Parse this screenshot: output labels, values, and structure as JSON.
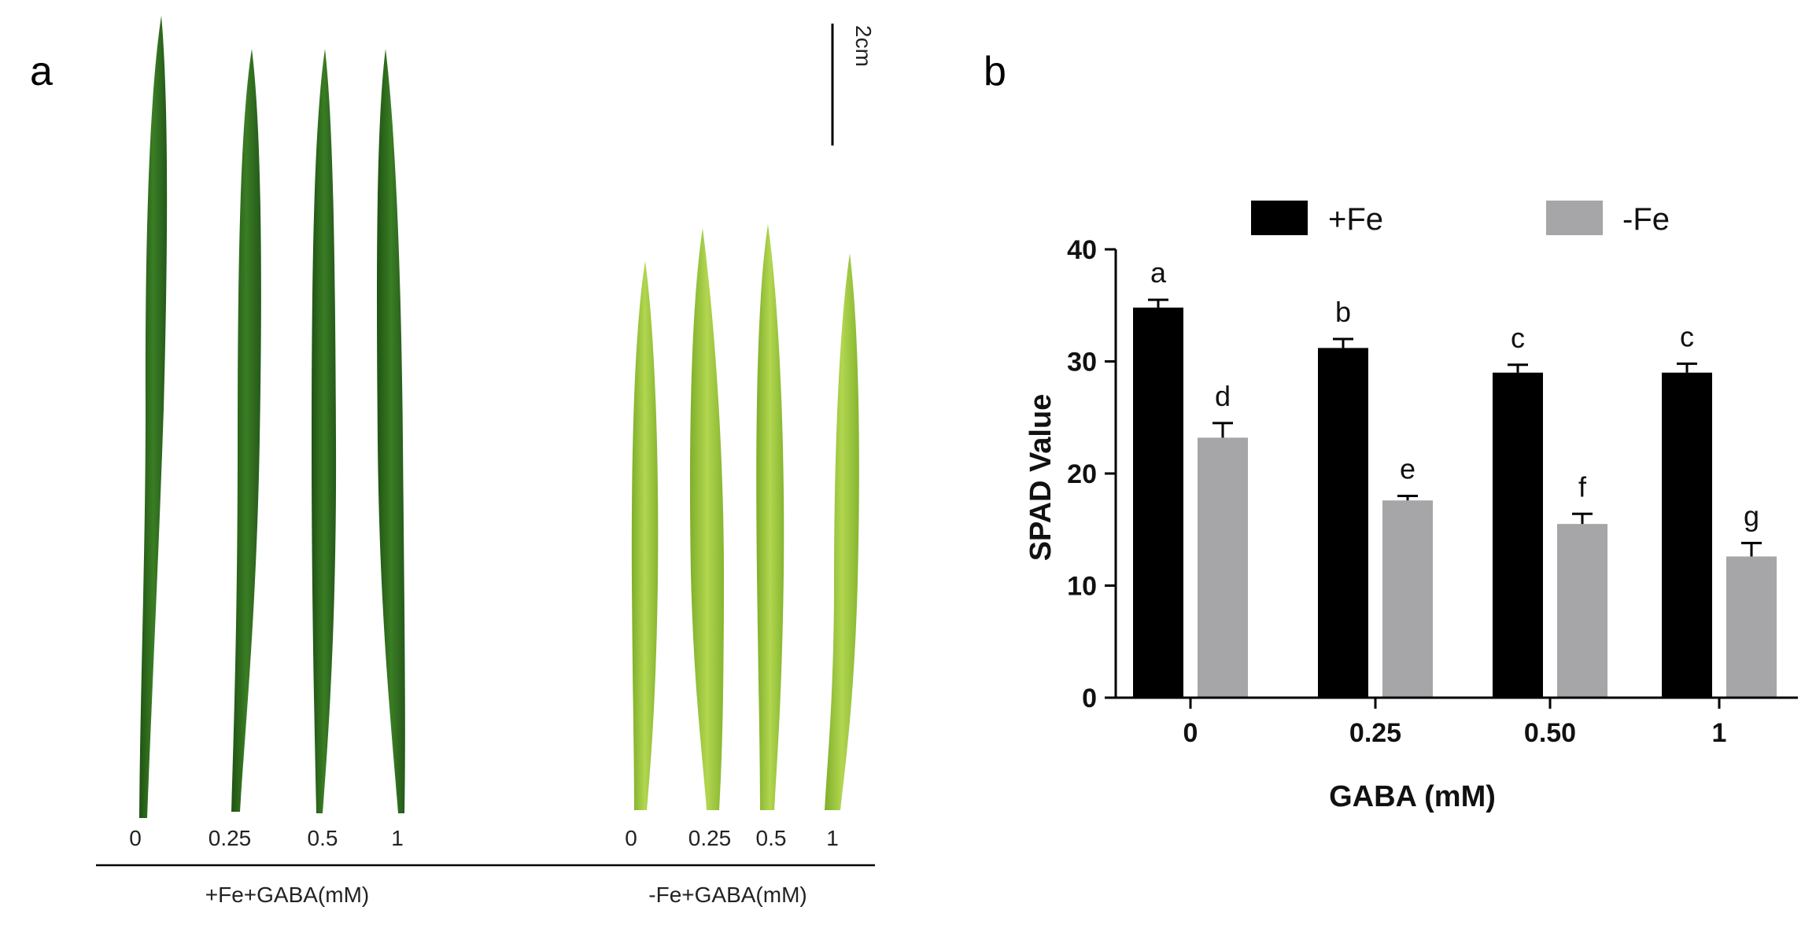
{
  "panel_a": {
    "letter": "a",
    "scale_label": "2cm",
    "plus_fe": {
      "leaf_labels": [
        "0",
        "0.25",
        "0.5",
        "1"
      ],
      "group_label": "+Fe+GABA(mM)"
    },
    "minus_fe": {
      "leaf_labels": [
        "0",
        "0.25",
        "0.5",
        "1"
      ],
      "group_label": "-Fe+GABA(mM)"
    },
    "colors": {
      "dark_leaf": "#2f6f1e",
      "light_leaf": "#9bc83a"
    }
  },
  "panel_b": {
    "letter": "b"
  },
  "chart_data": {
    "type": "bar",
    "categories": [
      "0",
      "0.25",
      "0.50",
      "1"
    ],
    "series": [
      {
        "name": "+Fe",
        "color": "#000000",
        "values": [
          34.8,
          31.2,
          29.0,
          29.0
        ],
        "errors": [
          0.7,
          0.8,
          0.7,
          0.8
        ],
        "labels": [
          "a",
          "b",
          "c",
          "c"
        ]
      },
      {
        "name": "-Fe",
        "color": "#a6a6a8",
        "values": [
          23.2,
          17.6,
          15.5,
          12.6
        ],
        "errors": [
          1.3,
          0.4,
          0.9,
          1.2
        ],
        "labels": [
          "d",
          "e",
          "f",
          "g"
        ]
      }
    ],
    "xlabel": "GABA (mM)",
    "ylabel": "SPAD Value",
    "ylim": [
      0,
      40
    ],
    "yticks": [
      "0",
      "10",
      "20",
      "30",
      "40"
    ],
    "legend_position": "top"
  }
}
